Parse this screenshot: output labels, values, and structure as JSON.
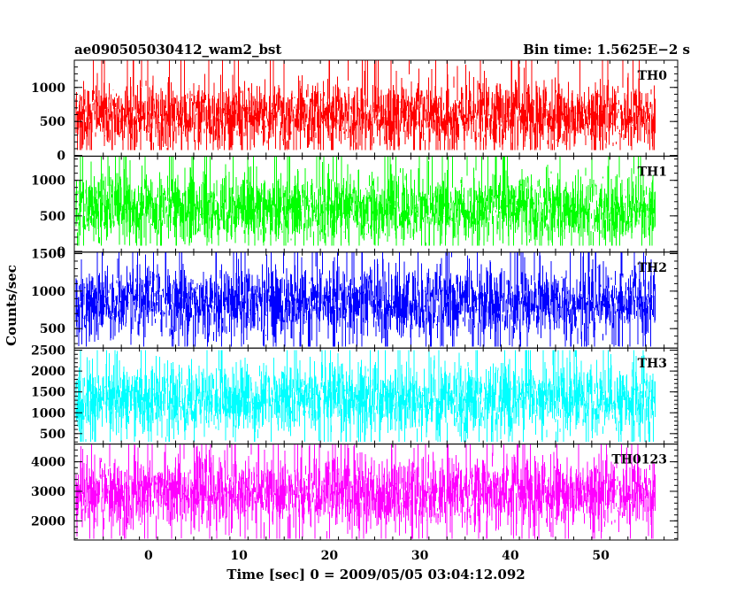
{
  "chart_data": {
    "type": "line",
    "title_left": "ae090505030412_wam2_bst",
    "title_right": "Bin time: 1.5625E−2 s",
    "xlabel": "Time [sec] 0 = 2009/05/05 03:04:12.092",
    "ylabel": "Counts/sec",
    "xlim": [
      -8.2,
      58.5
    ],
    "x_data_range": [
      -8,
      56
    ],
    "x_ticks": [
      0,
      10,
      20,
      30,
      40,
      50
    ],
    "x_tick_labels": [
      "0",
      "10",
      "20",
      "30",
      "40",
      "50"
    ],
    "grid": false,
    "panels": [
      {
        "label": "TH0",
        "color": "#ff0000",
        "ylim": [
          -10,
          1400
        ],
        "y_ticks": [
          0,
          500,
          1000
        ],
        "y_tick_labels": [
          "0",
          "500",
          "1000"
        ],
        "mean": 580,
        "low": 80,
        "high": 1400
      },
      {
        "label": "TH1",
        "color": "#00ff00",
        "ylim": [
          -10,
          1340
        ],
        "y_ticks": [
          0,
          500,
          1000
        ],
        "y_tick_labels": [
          "0",
          "500",
          "1000"
        ],
        "mean": 600,
        "low": 80,
        "high": 1340
      },
      {
        "label": "TH2",
        "color": "#0000ff",
        "ylim": [
          240,
          1520
        ],
        "y_ticks": [
          500,
          1000,
          1500
        ],
        "y_tick_labels": [
          "500",
          "1000",
          "1500"
        ],
        "mean": 850,
        "low": 260,
        "high": 1520
      },
      {
        "label": "TH3",
        "color": "#00ffff",
        "ylim": [
          250,
          2550
        ],
        "y_ticks": [
          500,
          1000,
          1500,
          2000,
          2500
        ],
        "y_tick_labels": [
          "500",
          "1000",
          "1500",
          "2000",
          "2500"
        ],
        "mean": 1320,
        "low": 300,
        "high": 2500
      },
      {
        "label": "TH0123",
        "color": "#ff00ff",
        "ylim": [
          1350,
          4600
        ],
        "y_ticks": [
          2000,
          3000,
          4000
        ],
        "y_tick_labels": [
          "2000",
          "3000",
          "4000"
        ],
        "mean": 2950,
        "low": 1400,
        "high": 4600
      }
    ]
  }
}
